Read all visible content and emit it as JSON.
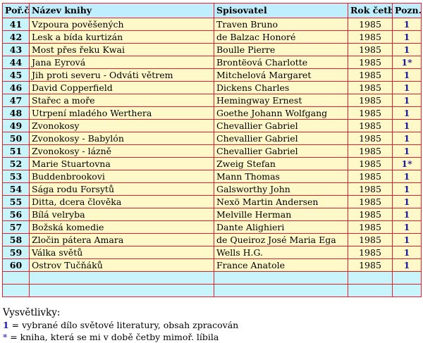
{
  "table": {
    "headers": [
      "Poř.č.",
      "Název knihy",
      "Spisovatel",
      "Rok četby",
      "Pozn."
    ],
    "rows": [
      {
        "num": "41",
        "title": "Vzpoura pověšených",
        "author": "Traven Bruno",
        "year": "1985",
        "note": "1"
      },
      {
        "num": "42",
        "title": "Lesk a bída kurtizán",
        "author": "de Balzac Honoré",
        "year": "1985",
        "note": "1"
      },
      {
        "num": "43",
        "title": "Most přes řeku Kwai",
        "author": "Boulle Pierre",
        "year": "1985",
        "note": "1"
      },
      {
        "num": "44",
        "title": "Jana Eyrová",
        "author": "Brontëová Charlotte",
        "year": "1985",
        "note": "1*"
      },
      {
        "num": "45",
        "title": "Jih proti severu - Odváti větrem",
        "author": "Mitchelová Margaret",
        "year": "1985",
        "note": "1"
      },
      {
        "num": "46",
        "title": "David Copperfield",
        "author": "Dickens Charles",
        "year": "1985",
        "note": "1"
      },
      {
        "num": "47",
        "title": "Stařec a moře",
        "author": "Hemingway Ernest",
        "year": "1985",
        "note": "1"
      },
      {
        "num": "48",
        "title": "Utrpení mladého Werthera",
        "author": "Goethe Johann Wolfgang",
        "year": "1985",
        "note": "1"
      },
      {
        "num": "49",
        "title": "Zvonokosy",
        "author": "Chevallier Gabriel",
        "year": "1985",
        "note": "1"
      },
      {
        "num": "50",
        "title": "Zvonokosy - Babylón",
        "author": "Chevallier Gabriel",
        "year": "1985",
        "note": "1"
      },
      {
        "num": "51",
        "title": "Zvonokosy - lázně",
        "author": "Chevallier Gabriel",
        "year": "1985",
        "note": "1"
      },
      {
        "num": "52",
        "title": "Marie Stuartovna",
        "author": "Zweig Stefan",
        "year": "1985",
        "note": "1*"
      },
      {
        "num": "53",
        "title": "Buddenbrookovi",
        "author": "Mann Thomas",
        "year": "1985",
        "note": "1"
      },
      {
        "num": "54",
        "title": "Sága rodu Forsytů",
        "author": "Galsworthy John",
        "year": "1985",
        "note": "1"
      },
      {
        "num": "55",
        "title": "Ditta, dcera člověka",
        "author": "Nexö Martin Andersen",
        "year": "1985",
        "note": "1"
      },
      {
        "num": "56",
        "title": "Bílá velryba",
        "author": "Melville Herman",
        "year": "1985",
        "note": "1"
      },
      {
        "num": "57",
        "title": "Božská komedie",
        "author": "Dante Alighieri",
        "year": "1985",
        "note": "1"
      },
      {
        "num": "58",
        "title": "Zločin pátera Amara",
        "author": "de Queiroz José Maria Ega",
        "year": "1985",
        "note": "1"
      },
      {
        "num": "59",
        "title": "Válka světů",
        "author": "Wells H.G.",
        "year": "1985",
        "note": "1"
      },
      {
        "num": "60",
        "title": "Ostrov Tučňáků",
        "author": "France Anatole",
        "year": "1985",
        "note": "1"
      }
    ]
  },
  "legend": {
    "title": "Vysvětlivky:",
    "one_symbol": "1",
    "one_text": " = vybrané dílo světové literatury, obsah zpracován",
    "star_symbol": "*",
    "star_text": " = kniha, která se mi v době četby mimoř. líbila"
  }
}
